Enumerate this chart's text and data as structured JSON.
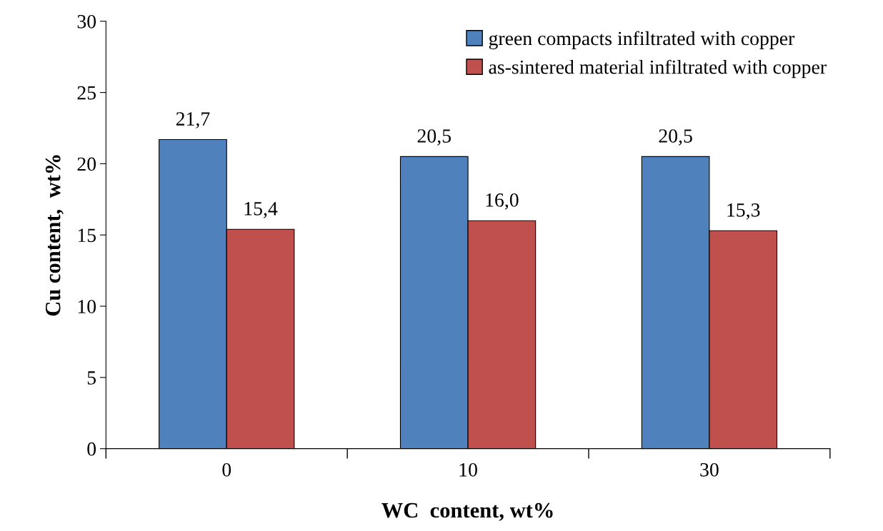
{
  "chart_data": {
    "type": "bar",
    "xlabel": "WC  content, wt%",
    "ylabel": "Cu content,  wt%",
    "categories": [
      "0",
      "10",
      "30"
    ],
    "series": [
      {
        "name": "green compacts infiltrated with copper",
        "color": "#4f81bd",
        "values": [
          21.7,
          20.5,
          20.5
        ],
        "value_labels": [
          "21,7",
          "20,5",
          "20,5"
        ]
      },
      {
        "name": "as-sintered material infiltrated with copper",
        "color": "#c0504d",
        "values": [
          15.4,
          16.0,
          15.3
        ],
        "value_labels": [
          "15,4",
          "16,0",
          "15,3"
        ]
      }
    ],
    "ylim": [
      0,
      30
    ],
    "yticks": [
      0,
      5,
      10,
      15,
      20,
      25,
      30
    ],
    "grid": false,
    "legend": "top right"
  }
}
